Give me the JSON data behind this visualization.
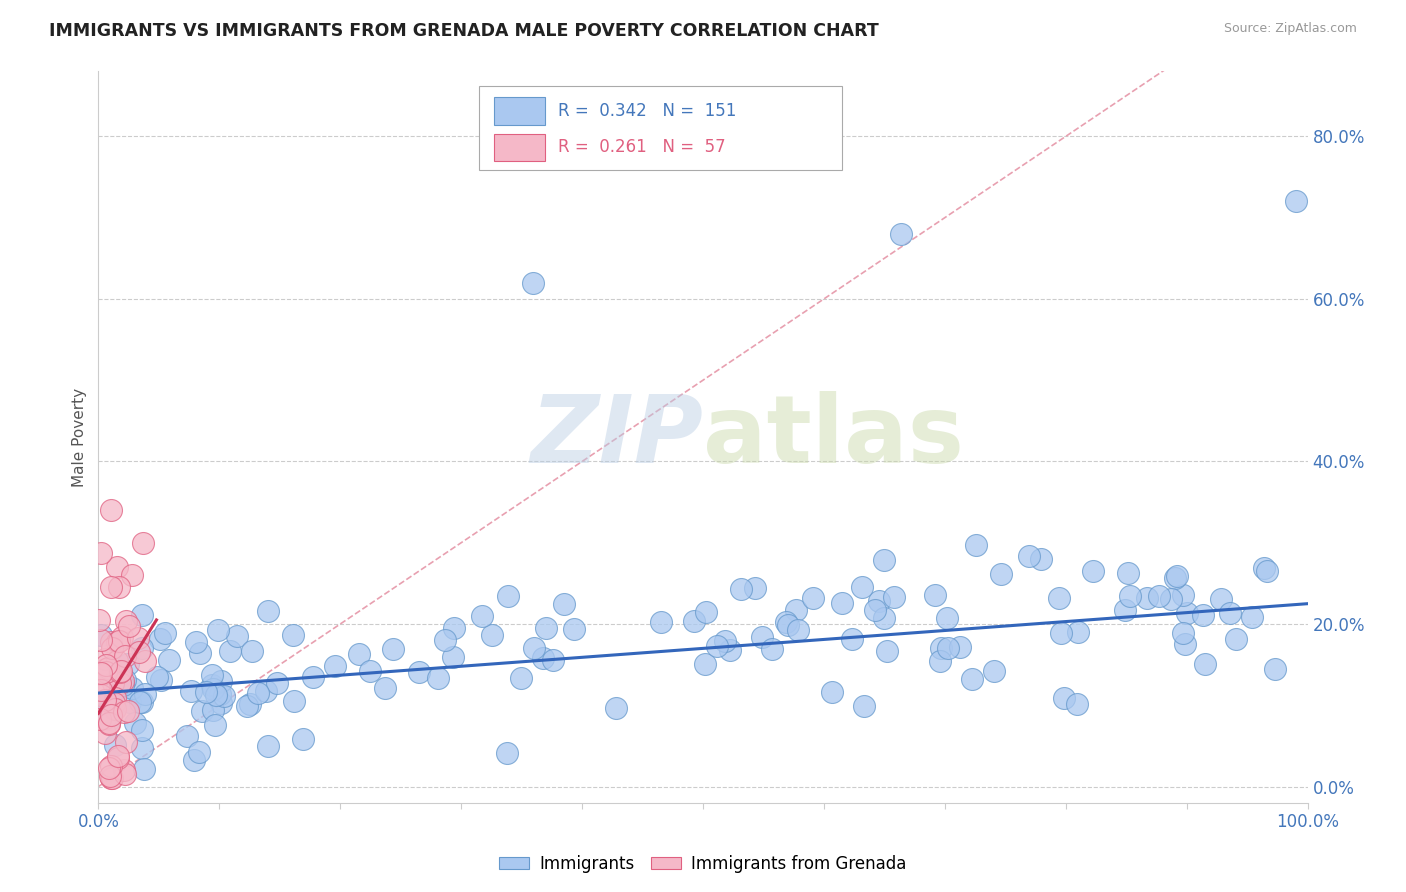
{
  "title": "IMMIGRANTS VS IMMIGRANTS FROM GRENADA MALE POVERTY CORRELATION CHART",
  "source": "Source: ZipAtlas.com",
  "ylabel": "Male Poverty",
  "xlim": [
    0.0,
    1.0
  ],
  "ylim": [
    -0.02,
    0.88
  ],
  "ytick_positions": [
    0.0,
    0.2,
    0.4,
    0.6,
    0.8
  ],
  "ytick_labels": [
    "0.0%",
    "20.0%",
    "40.0%",
    "60.0%",
    "80.0%"
  ],
  "blue_color": "#aac8f0",
  "blue_edge_color": "#6699cc",
  "pink_color": "#f5b8c8",
  "pink_edge_color": "#e06080",
  "blue_line_color": "#3366bb",
  "pink_line_color": "#cc3355",
  "diag_color": "#e8a0b0",
  "grid_color": "#cccccc",
  "title_color": "#222222",
  "axis_label_color": "#4477bb",
  "legend_R1": "0.342",
  "legend_N1": "151",
  "legend_R2": "0.261",
  "legend_N2": "57",
  "n_blue": 151,
  "n_pink": 57,
  "blue_seed": 42,
  "pink_seed": 99,
  "blue_trend_start_y": 0.115,
  "blue_trend_end_y": 0.225,
  "pink_trend_x0": 0.0,
  "pink_trend_y0": 0.09,
  "pink_trend_x1": 0.048,
  "pink_trend_y1": 0.205
}
